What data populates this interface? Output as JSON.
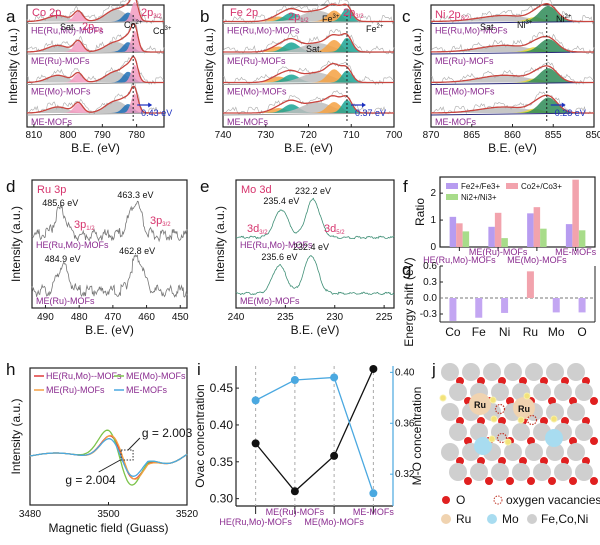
{
  "panel_labels": [
    "a",
    "b",
    "c",
    "d",
    "e",
    "f",
    "g",
    "h",
    "i",
    "j"
  ],
  "samples": [
    "HE(Ru,Mo)-MOFs",
    "ME(Ru)-MOFs",
    "ME(Mo)-MOFs",
    "ME-MOFs"
  ],
  "colors": {
    "fit_line": "#c9453f",
    "sample_label": "#8a2b8f",
    "title": "#d6336c",
    "shift_arrow": "#1b2fbf",
    "sat_fill": "#bdbdbd",
    "co2_fill": "#1f6fb5",
    "co3_fill": "#f29bbf",
    "fe3_fill": "#f5a142",
    "fe2_fill": "#1aa394",
    "ni3_fill": "#e6d93a",
    "ni2_fill": "#2e8b57",
    "mo_line": "#3f8f76",
    "ru_line": "#777777"
  },
  "chart_data": [
    {
      "id": "a",
      "type": "line",
      "title": "Co 2p",
      "xlabel": "B.E. (eV)",
      "ylabel": "Intensity (a.u.)",
      "xlim": [
        812,
        772
      ],
      "xticks": [
        810,
        800,
        790,
        780
      ],
      "peak_labels": [
        "Sat.",
        "2p1/2",
        "Co2+",
        "2p3/2",
        "Co3+"
      ],
      "series": [
        "HE(Ru,Mo)-MOFs",
        "ME(Ru)-MOFs",
        "ME(Mo)-MOFs",
        "ME-MOFs"
      ],
      "reference_line_x": 781,
      "shift_annotation": "0.43 eV"
    },
    {
      "id": "b",
      "type": "line",
      "title": "Fe 2p",
      "xlabel": "B.E. (eV)",
      "ylabel": "Intensity (a.u.)",
      "xlim": [
        740,
        700
      ],
      "xticks": [
        740,
        730,
        720,
        710,
        700
      ],
      "peak_labels": [
        "2p1/2",
        "Fe3+",
        "2p3/2",
        "Fe2+",
        "Sat."
      ],
      "series": [
        "HE(Ru,Mo)-MOFs",
        "ME(Ru)-MOFs",
        "ME(Mo)-MOFs",
        "ME-MOFs"
      ],
      "reference_line_x": 711,
      "shift_annotation": "0.37 eV"
    },
    {
      "id": "c",
      "type": "line",
      "title": "Ni 2p3/2",
      "xlabel": "B.E. (eV)",
      "ylabel": "Intensity (a.u.)",
      "xlim": [
        870,
        850
      ],
      "xticks": [
        870,
        865,
        860,
        855,
        850
      ],
      "peak_labels": [
        "Sat.",
        "Ni3+",
        "Ni2+"
      ],
      "series": [
        "HE(Ru,Mo)-MOFs",
        "ME(Ru)-MOFs",
        "ME(Mo)-MOFs",
        "ME-MOFs"
      ],
      "reference_line_x": 855.8,
      "shift_annotation": "0.28 eV"
    },
    {
      "id": "d",
      "type": "line",
      "title": "Ru 3p",
      "xlabel": "B.E. (eV)",
      "ylabel": "Intensity (a.u.)",
      "xlim": [
        494,
        448
      ],
      "xticks": [
        490,
        480,
        470,
        460,
        450
      ],
      "peak_labels": [
        "3p1/2",
        "3p3/2"
      ],
      "series": [
        {
          "name": "HE(Ru,Mo)-MOFs",
          "peaks": [
            485.6,
            463.3
          ],
          "peak_text": [
            "485.6 eV",
            "463.3 eV"
          ]
        },
        {
          "name": "ME(Ru)-MOFs",
          "peaks": [
            484.9,
            462.8
          ],
          "peak_text": [
            "484.9 eV",
            "462.8 eV"
          ]
        }
      ]
    },
    {
      "id": "e",
      "type": "line",
      "title": "Mo 3d",
      "xlabel": "B.E. (eV)",
      "ylabel": "Intensity (a.u.)",
      "xlim": [
        240,
        224
      ],
      "xticks": [
        240,
        235,
        230,
        225
      ],
      "peak_labels": [
        "3d3/2",
        "3d5/2"
      ],
      "series": [
        {
          "name": "HE(Ru,Mo)-MOFs",
          "peaks": [
            235.4,
            232.2
          ],
          "peak_text": [
            "235.4 eV",
            "232.2 eV"
          ]
        },
        {
          "name": "ME(Mo)-MOFs",
          "peaks": [
            235.6,
            232.4
          ],
          "peak_text": [
            "235.6 eV",
            "232.4 eV"
          ]
        }
      ]
    },
    {
      "id": "f",
      "type": "bar",
      "ylabel": "Ratio",
      "ylim": [
        0,
        2.6
      ],
      "yticks": [
        0,
        1,
        2
      ],
      "categories": [
        "HE(Ru,Mo)-MOFs",
        "ME(Ru)-MOFs",
        "ME(Mo)-MOFs",
        "ME-MOFs"
      ],
      "series": [
        {
          "name": "Fe2+/Fe3+",
          "color": "#b79cf0",
          "values": [
            1.12,
            0.75,
            1.25,
            0.85
          ]
        },
        {
          "name": "Co2+/Co3+",
          "color": "#f2a3ad",
          "values": [
            0.88,
            1.27,
            1.48,
            2.5
          ]
        },
        {
          "name": "Ni2+/Ni3+",
          "color": "#a8dc8a",
          "values": [
            0.58,
            0.33,
            0.68,
            0.62
          ]
        }
      ],
      "legend": "top-left"
    },
    {
      "id": "g",
      "type": "bar",
      "ylabel": "Energy shift (eV)",
      "ylim": [
        -0.45,
        0.6
      ],
      "yticks": [
        0.6,
        0.3,
        0.0,
        -0.3
      ],
      "categories": [
        "Co",
        "Fe",
        "Ni",
        "Ru",
        "Mo",
        "O"
      ],
      "values": [
        -0.43,
        -0.37,
        -0.28,
        0.5,
        -0.27,
        -0.27
      ],
      "positive_color": "#f2a3ad",
      "negative_color": "#c3a6f2"
    },
    {
      "id": "h",
      "type": "line",
      "xlabel": "Magnetic field (Guass)",
      "ylabel": "Intensity (a.u.)",
      "xlim": [
        3480,
        3520
      ],
      "xticks": [
        3480,
        3500,
        3520
      ],
      "series": [
        {
          "name": "HE(Ru,Mo)--MOFs",
          "color": "#e03a3a"
        },
        {
          "name": "ME(Mo)-MOFs",
          "color": "#7cc34a"
        },
        {
          "name": "ME(Ru)-MOFs",
          "color": "#f5a142"
        },
        {
          "name": "ME-MOFs",
          "color": "#4aa8e0"
        }
      ],
      "annotations": [
        {
          "text": "g = 2.003",
          "color": "#111111"
        },
        {
          "text": "g = 2.004",
          "color": "#7cc34a"
        }
      ],
      "legend": "top"
    },
    {
      "id": "i",
      "type": "line",
      "ylabel": "Ovac concentration",
      "y2label": "M-O concentration",
      "ylim": [
        0.29,
        0.48
      ],
      "yticks": [
        0.3,
        0.35,
        0.4,
        0.45
      ],
      "y2lim": [
        0.295,
        0.405
      ],
      "y2ticks": [
        0.32,
        0.36,
        0.4
      ],
      "categories": [
        "HE(Ru,Mo)-MOFs",
        "ME(Ru)-MOFs",
        "ME(Mo)-MOFs",
        "ME-MOFs"
      ],
      "series": [
        {
          "name": "Ovac concentration",
          "axis": "left",
          "color": "#111111",
          "values": [
            0.375,
            0.31,
            0.358,
            0.476
          ]
        },
        {
          "name": "M-O concentration",
          "axis": "right",
          "color": "#4aa8e0",
          "values": [
            0.378,
            0.394,
            0.396,
            0.305
          ]
        }
      ]
    }
  ],
  "panel_j": {
    "atom_labels": [
      "Ru",
      "Ru"
    ],
    "legend": [
      {
        "label": "O",
        "color": "#e02020"
      },
      {
        "label": "oxygen vacancies",
        "color": "#c0392b"
      },
      {
        "label": "Ru",
        "color": "#f0d3b0"
      },
      {
        "label": "Mo",
        "color": "#a8dcf0"
      },
      {
        "label": "Fe,Co,Ni",
        "color": "#cfcfcf"
      }
    ]
  }
}
